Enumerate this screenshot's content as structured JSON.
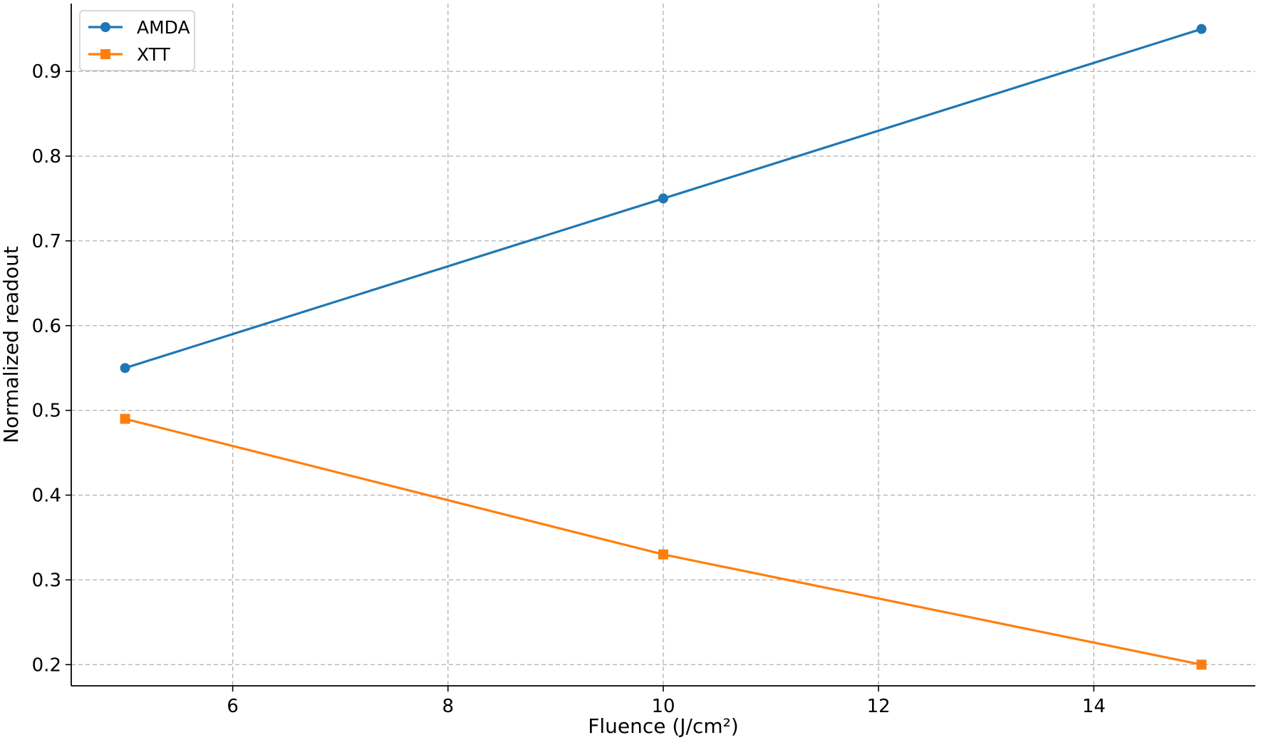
{
  "chart_data": {
    "type": "line",
    "title": "",
    "xlabel": "Fluence (J/cm²)",
    "ylabel": "Normalized readout",
    "xlim": [
      4.5,
      15.5
    ],
    "ylim": [
      0.175,
      0.98
    ],
    "xticks": [
      6,
      8,
      10,
      12,
      14
    ],
    "yticks": [
      0.2,
      0.3,
      0.4,
      0.5,
      0.6,
      0.7,
      0.8,
      0.9
    ],
    "grid": true,
    "legend_position": "top-left",
    "series": [
      {
        "name": "AMDA",
        "color": "#1f77b4",
        "marker": "circle",
        "x": [
          5,
          10,
          15
        ],
        "y": [
          0.55,
          0.75,
          0.95
        ]
      },
      {
        "name": "XTT",
        "color": "#ff7f0e",
        "marker": "square",
        "x": [
          5,
          10,
          15
        ],
        "y": [
          0.49,
          0.33,
          0.2
        ]
      }
    ]
  }
}
